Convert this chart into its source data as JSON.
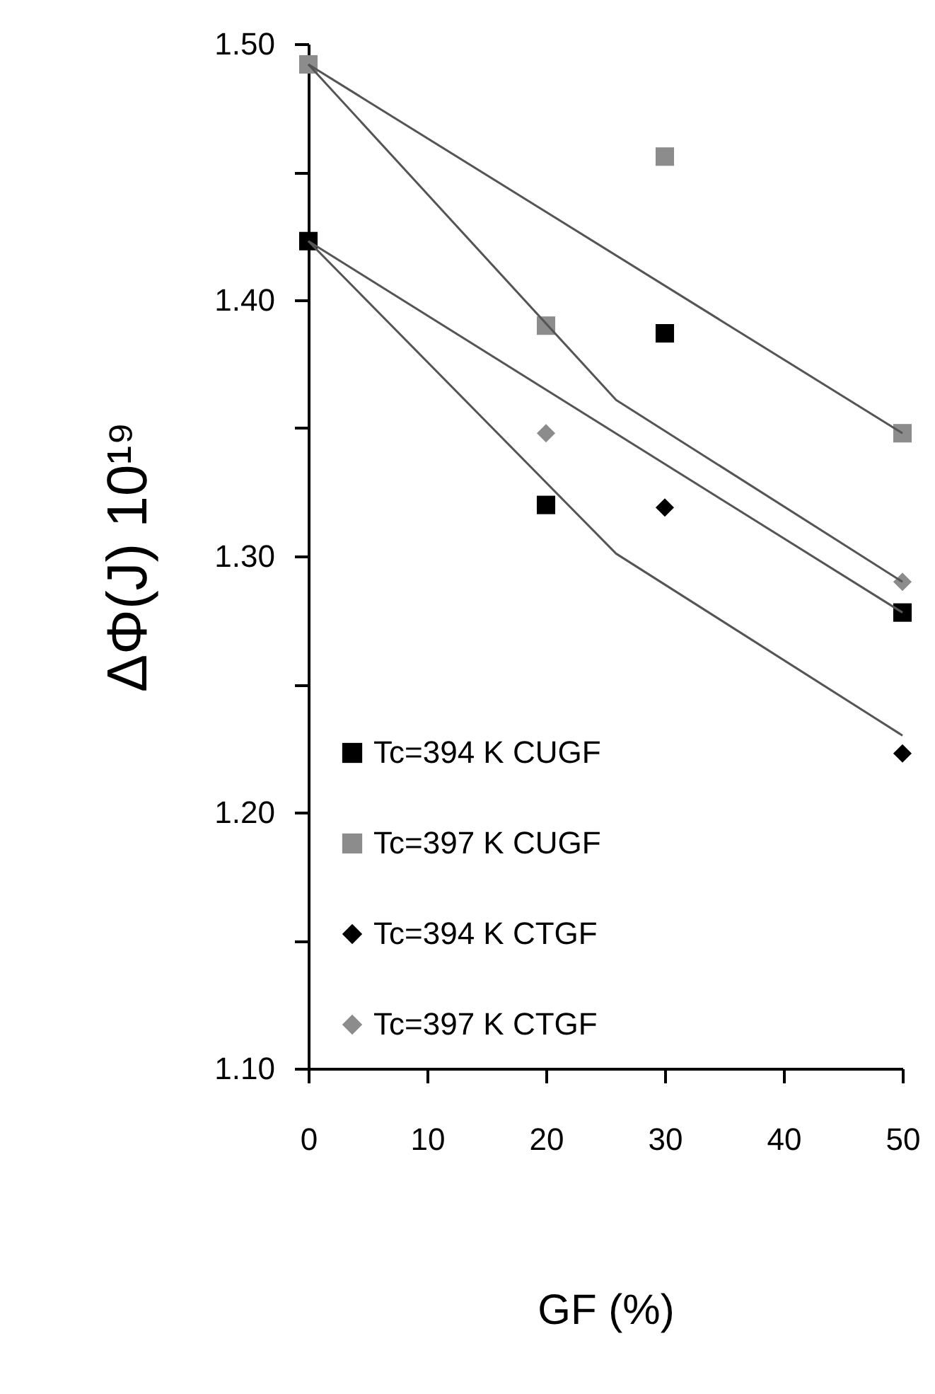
{
  "chart_data": {
    "type": "scatter",
    "xlabel": "GF (%)",
    "ylabel": "ΔΦ(J) 10¹⁹",
    "x": [
      0,
      20,
      30,
      50
    ],
    "xlim": [
      0,
      50
    ],
    "xticks": [
      0,
      10,
      20,
      30,
      40,
      50
    ],
    "ylim": [
      1.1,
      1.5
    ],
    "yticks": [
      {
        "value": 1.1,
        "label": "1.10"
      },
      {
        "value": 1.15,
        "label": null
      },
      {
        "value": 1.2,
        "label": "1.20"
      },
      {
        "value": 1.25,
        "label": null
      },
      {
        "value": 1.3,
        "label": "1.30"
      },
      {
        "value": 1.35,
        "label": null
      },
      {
        "value": 1.4,
        "label": "1.40"
      },
      {
        "value": 1.45,
        "label": null
      },
      {
        "value": 1.5,
        "label": "1.50"
      }
    ],
    "grid": false,
    "legend": "bottom left",
    "series": [
      {
        "name": "Tc=394 K  CUGF",
        "marker": "square",
        "color": "#000000",
        "values": [
          1.423,
          1.32,
          1.387,
          1.278
        ]
      },
      {
        "name": "Tc=397 K  CUGF",
        "marker": "square",
        "color": "#8c8c8c",
        "values": [
          1.492,
          1.39,
          1.456,
          1.348
        ]
      },
      {
        "name": "Tc=394 K  CTGF",
        "marker": "diamond",
        "color": "#000000",
        "values": [
          null,
          null,
          1.319,
          1.223
        ]
      },
      {
        "name": "Tc=397 K  CTGF",
        "marker": "diamond",
        "color": "#8c8c8c",
        "values": [
          null,
          1.348,
          null,
          1.29
        ]
      },
      {
        "type": "line",
        "color": "#555555",
        "x": [
          0,
          50
        ],
        "values": [
          1.492,
          1.348
        ]
      },
      {
        "type": "line",
        "color": "#555555",
        "x": [
          0,
          25.9,
          50
        ],
        "values": [
          1.492,
          1.361,
          1.29
        ]
      },
      {
        "type": "line",
        "color": "#555555",
        "x": [
          0,
          50
        ],
        "values": [
          1.423,
          1.278
        ]
      },
      {
        "type": "line",
        "color": "#555555",
        "x": [
          0,
          25.9,
          50
        ],
        "values": [
          1.423,
          1.301,
          1.23
        ]
      }
    ]
  }
}
